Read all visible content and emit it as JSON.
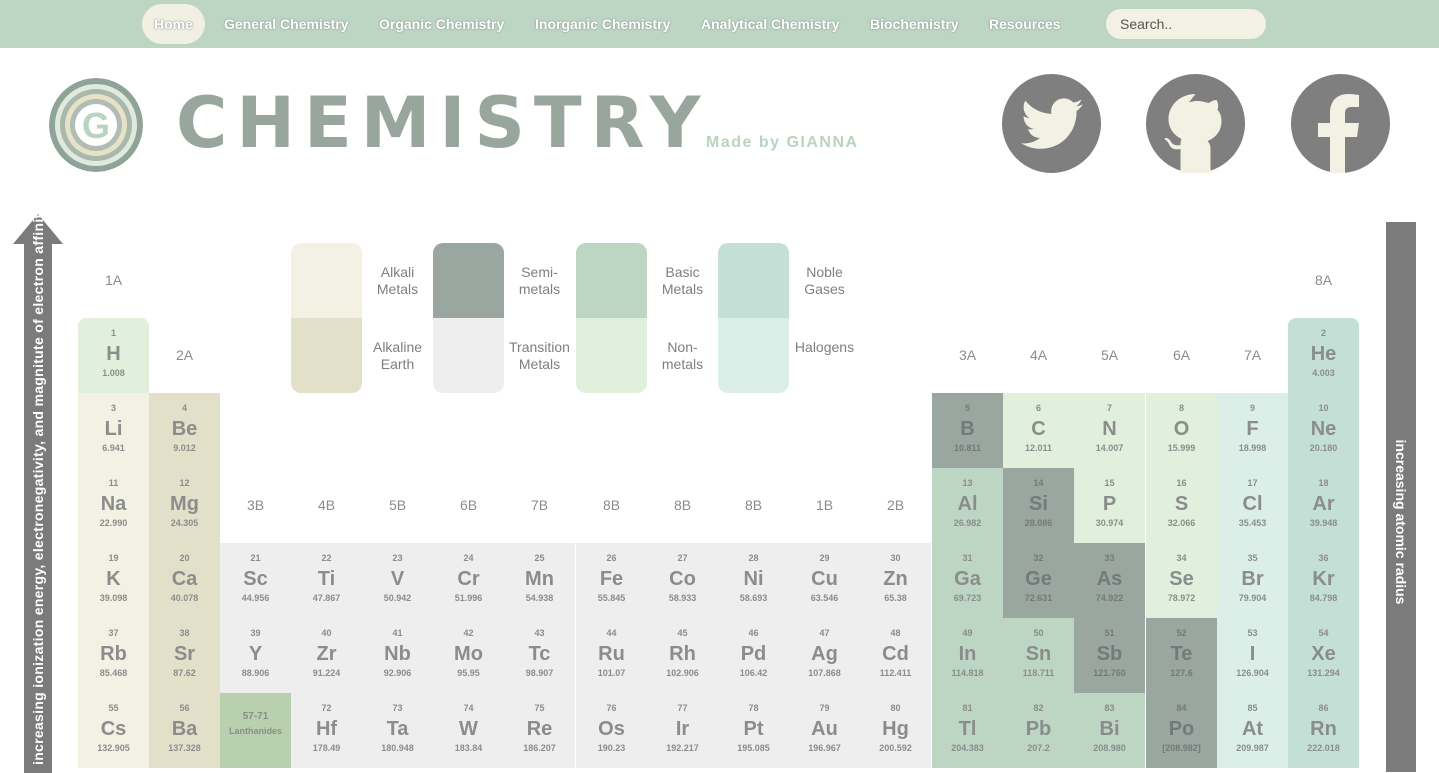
{
  "nav": {
    "items": [
      "Home",
      "General Chemistry",
      "Organic Chemistry",
      "Inorganic Chemistry",
      "Analytical Chemistry",
      "Biochemistry",
      "Resources"
    ],
    "active": "Home",
    "search_placeholder": "Search.."
  },
  "header": {
    "logo_letter": "G",
    "title": "CHEMISTRY",
    "made_by": "Made by GIANNA",
    "social": [
      "twitter-icon",
      "github-icon",
      "facebook-icon"
    ]
  },
  "arrows": {
    "left": "increasing ionization energy, electronegativity, and magnitute of electron affinity",
    "right": "increasing atomic radius"
  },
  "colors": {
    "alkali": "#f2f1e3",
    "alkaline": "#e2e0c9",
    "semimetal": "#9aa6a0",
    "transition": "#eeeeee",
    "basic": "#bdd5c3",
    "nonmetal": "#e0f0dc",
    "noble": "#c4e0d6",
    "halogen": "#dbefe8",
    "hydrogen": "#e0f0dc",
    "lanthanide": "#b8d0ae"
  },
  "legend": [
    {
      "label": "Alkali Metals",
      "cat": "alkali"
    },
    {
      "label": "Alkaline Earth",
      "cat": "alkaline"
    },
    {
      "label": "Semi-metals",
      "cat": "semimetal"
    },
    {
      "label": "Transition Metals",
      "cat": "transition"
    },
    {
      "label": "Basic Metals",
      "cat": "basic"
    },
    {
      "label": "Non-metals",
      "cat": "nonmetal"
    },
    {
      "label": "Noble Gases",
      "cat": "noble"
    },
    {
      "label": "Halogens",
      "cat": "halogen"
    }
  ],
  "group_labels": [
    "1A",
    "2A",
    "3B",
    "4B",
    "5B",
    "6B",
    "7B",
    "8B",
    "8B",
    "8B",
    "1B",
    "2B",
    "3A",
    "4A",
    "5A",
    "6A",
    "7A",
    "8A"
  ],
  "elements": [
    {
      "n": "1",
      "s": "H",
      "m": "1.008",
      "c": "hydrogen"
    },
    {
      "n": "2",
      "s": "He",
      "m": "4.003",
      "c": "noble"
    },
    {
      "n": "3",
      "s": "Li",
      "m": "6.941",
      "c": "alkali"
    },
    {
      "n": "4",
      "s": "Be",
      "m": "9.012",
      "c": "alkaline"
    },
    {
      "n": "5",
      "s": "B",
      "m": "10.811",
      "c": "semimetal"
    },
    {
      "n": "6",
      "s": "C",
      "m": "12.011",
      "c": "nonmetal"
    },
    {
      "n": "7",
      "s": "N",
      "m": "14.007",
      "c": "nonmetal"
    },
    {
      "n": "8",
      "s": "O",
      "m": "15.999",
      "c": "nonmetal"
    },
    {
      "n": "9",
      "s": "F",
      "m": "18.998",
      "c": "halogen"
    },
    {
      "n": "10",
      "s": "Ne",
      "m": "20.180",
      "c": "noble"
    },
    {
      "n": "11",
      "s": "Na",
      "m": "22.990",
      "c": "alkali"
    },
    {
      "n": "12",
      "s": "Mg",
      "m": "24.305",
      "c": "alkaline"
    },
    {
      "n": "13",
      "s": "Al",
      "m": "26.982",
      "c": "basic"
    },
    {
      "n": "14",
      "s": "Si",
      "m": "28.086",
      "c": "semimetal"
    },
    {
      "n": "15",
      "s": "P",
      "m": "30.974",
      "c": "nonmetal"
    },
    {
      "n": "16",
      "s": "S",
      "m": "32.066",
      "c": "nonmetal"
    },
    {
      "n": "17",
      "s": "Cl",
      "m": "35.453",
      "c": "halogen"
    },
    {
      "n": "18",
      "s": "Ar",
      "m": "39.948",
      "c": "noble"
    },
    {
      "n": "19",
      "s": "K",
      "m": "39.098",
      "c": "alkali"
    },
    {
      "n": "20",
      "s": "Ca",
      "m": "40.078",
      "c": "alkaline"
    },
    {
      "n": "21",
      "s": "Sc",
      "m": "44.956",
      "c": "transition"
    },
    {
      "n": "22",
      "s": "Ti",
      "m": "47.867",
      "c": "transition"
    },
    {
      "n": "23",
      "s": "V",
      "m": "50.942",
      "c": "transition"
    },
    {
      "n": "24",
      "s": "Cr",
      "m": "51.996",
      "c": "transition"
    },
    {
      "n": "25",
      "s": "Mn",
      "m": "54.938",
      "c": "transition"
    },
    {
      "n": "26",
      "s": "Fe",
      "m": "55.845",
      "c": "transition"
    },
    {
      "n": "27",
      "s": "Co",
      "m": "58.933",
      "c": "transition"
    },
    {
      "n": "28",
      "s": "Ni",
      "m": "58.693",
      "c": "transition"
    },
    {
      "n": "29",
      "s": "Cu",
      "m": "63.546",
      "c": "transition"
    },
    {
      "n": "30",
      "s": "Zn",
      "m": "65.38",
      "c": "transition"
    },
    {
      "n": "31",
      "s": "Ga",
      "m": "69.723",
      "c": "basic"
    },
    {
      "n": "32",
      "s": "Ge",
      "m": "72.631",
      "c": "semimetal"
    },
    {
      "n": "33",
      "s": "As",
      "m": "74.922",
      "c": "semimetal"
    },
    {
      "n": "34",
      "s": "Se",
      "m": "78.972",
      "c": "nonmetal"
    },
    {
      "n": "35",
      "s": "Br",
      "m": "79.904",
      "c": "halogen"
    },
    {
      "n": "36",
      "s": "Kr",
      "m": "84.798",
      "c": "noble"
    },
    {
      "n": "37",
      "s": "Rb",
      "m": "85.468",
      "c": "alkali"
    },
    {
      "n": "38",
      "s": "Sr",
      "m": "87.62",
      "c": "alkaline"
    },
    {
      "n": "39",
      "s": "Y",
      "m": "88.906",
      "c": "transition"
    },
    {
      "n": "40",
      "s": "Zr",
      "m": "91.224",
      "c": "transition"
    },
    {
      "n": "41",
      "s": "Nb",
      "m": "92.906",
      "c": "transition"
    },
    {
      "n": "42",
      "s": "Mo",
      "m": "95.95",
      "c": "transition"
    },
    {
      "n": "43",
      "s": "Tc",
      "m": "98.907",
      "c": "transition"
    },
    {
      "n": "44",
      "s": "Ru",
      "m": "101.07",
      "c": "transition"
    },
    {
      "n": "45",
      "s": "Rh",
      "m": "102.906",
      "c": "transition"
    },
    {
      "n": "46",
      "s": "Pd",
      "m": "106.42",
      "c": "transition"
    },
    {
      "n": "47",
      "s": "Ag",
      "m": "107.868",
      "c": "transition"
    },
    {
      "n": "48",
      "s": "Cd",
      "m": "112.411",
      "c": "transition"
    },
    {
      "n": "49",
      "s": "In",
      "m": "114.818",
      "c": "basic"
    },
    {
      "n": "50",
      "s": "Sn",
      "m": "118.711",
      "c": "basic"
    },
    {
      "n": "51",
      "s": "Sb",
      "m": "121.760",
      "c": "semimetal"
    },
    {
      "n": "52",
      "s": "Te",
      "m": "127.6",
      "c": "semimetal"
    },
    {
      "n": "53",
      "s": "I",
      "m": "126.904",
      "c": "halogen"
    },
    {
      "n": "54",
      "s": "Xe",
      "m": "131.294",
      "c": "noble"
    },
    {
      "n": "55",
      "s": "Cs",
      "m": "132.905",
      "c": "alkali"
    },
    {
      "n": "56",
      "s": "Ba",
      "m": "137.328",
      "c": "alkaline"
    },
    {
      "n": "57-71",
      "s": "Lanthanides",
      "m": "",
      "c": "lanthanide"
    },
    {
      "n": "72",
      "s": "Hf",
      "m": "178.49",
      "c": "transition"
    },
    {
      "n": "73",
      "s": "Ta",
      "m": "180.948",
      "c": "transition"
    },
    {
      "n": "74",
      "s": "W",
      "m": "183.84",
      "c": "transition"
    },
    {
      "n": "75",
      "s": "Re",
      "m": "186.207",
      "c": "transition"
    },
    {
      "n": "76",
      "s": "Os",
      "m": "190.23",
      "c": "transition"
    },
    {
      "n": "77",
      "s": "Ir",
      "m": "192.217",
      "c": "transition"
    },
    {
      "n": "78",
      "s": "Pt",
      "m": "195.085",
      "c": "transition"
    },
    {
      "n": "79",
      "s": "Au",
      "m": "196.967",
      "c": "transition"
    },
    {
      "n": "80",
      "s": "Hg",
      "m": "200.592",
      "c": "transition"
    },
    {
      "n": "81",
      "s": "Tl",
      "m": "204.383",
      "c": "basic"
    },
    {
      "n": "82",
      "s": "Pb",
      "m": "207.2",
      "c": "basic"
    },
    {
      "n": "83",
      "s": "Bi",
      "m": "208.980",
      "c": "basic"
    },
    {
      "n": "84",
      "s": "Po",
      "m": "[208.982]",
      "c": "semimetal"
    },
    {
      "n": "85",
      "s": "At",
      "m": "209.987",
      "c": "halogen"
    },
    {
      "n": "86",
      "s": "Rn",
      "m": "222.018",
      "c": "noble"
    }
  ]
}
